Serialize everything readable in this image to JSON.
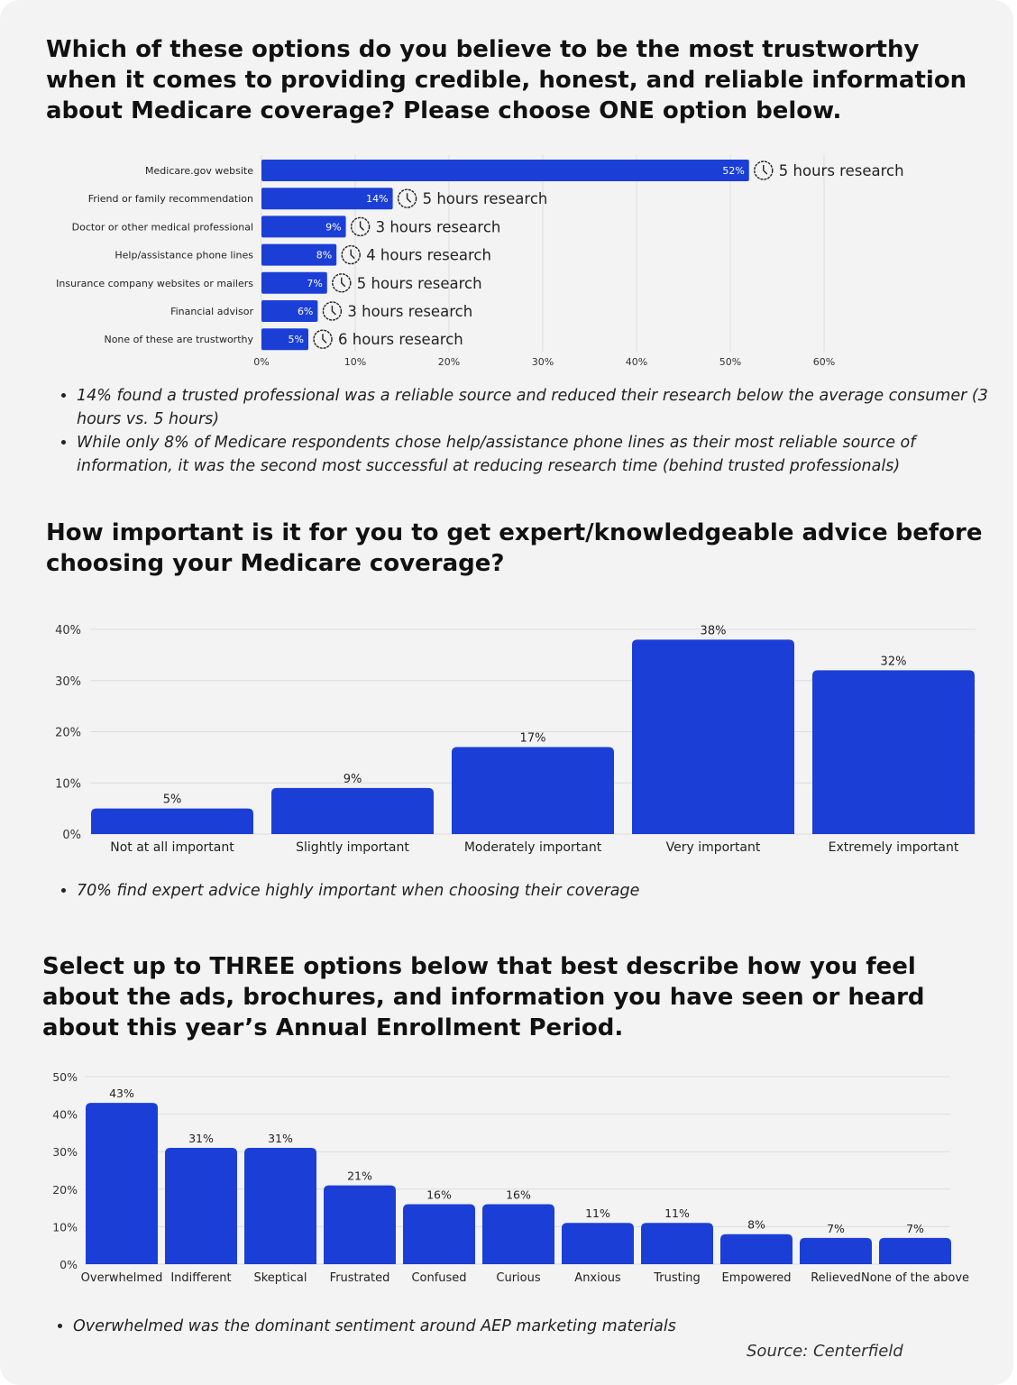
{
  "colors": {
    "bar": "#1b3fd6",
    "grid": "#dcdcdc",
    "background": "#f3f3f3"
  },
  "sections": [
    {
      "title": "Which of these options do you believe to be the most trustworthy when it comes to providing credible, honest, and reliable information about Medicare coverage? Please choose ONE option below.",
      "notes": [
        "14% found a trusted professional was a reliable source and reduced their research below the average consumer (3 hours vs. 5 hours)",
        "While only 8% of Medicare respondents chose help/assistance phone lines as their most reliable source of information, it was the second most successful at reducing research time (behind trusted professionals)"
      ]
    },
    {
      "title": "How important is it for you to get expert/knowledgeable advice before choosing your Medicare coverage?",
      "notes": [
        "70% find expert advice highly important when choosing their coverage"
      ]
    },
    {
      "title": "Select up to THREE options below that best describe how you feel about the ads, brochures, and information you have seen or heard about this year’s Annual Enrollment Period.",
      "notes": [
        "Overwhelmed was the dominant sentiment around AEP marketing materials"
      ]
    }
  ],
  "source": "Source: Centerfield",
  "chart_data": [
    {
      "type": "bar",
      "orientation": "horizontal",
      "categories": [
        "Medicare.gov website",
        "Friend or family recommendation",
        "Doctor or other medical professional",
        "Help/assistance phone lines",
        "Insurance company websites or mailers",
        "Financial advisor",
        "None of these are trustworthy"
      ],
      "values": [
        52,
        14,
        9,
        8,
        7,
        6,
        5
      ],
      "data_labels": [
        "52%",
        "14%",
        "9%",
        "8%",
        "7%",
        "6%",
        "5%"
      ],
      "annotations": [
        "5 hours research",
        "5 hours research",
        "3 hours research",
        "4 hours research",
        "5 hours research",
        "3 hours research",
        "6 hours research"
      ],
      "annotation_icon": "clock-icon",
      "xlim": [
        0,
        60
      ],
      "xticks": [
        "0%",
        "10%",
        "20%",
        "30%",
        "40%",
        "50%",
        "60%"
      ],
      "grid": true
    },
    {
      "type": "bar",
      "categories": [
        "Not at all important",
        "Slightly important",
        "Moderately important",
        "Very important",
        "Extremely important"
      ],
      "values": [
        5,
        9,
        17,
        38,
        32
      ],
      "data_labels": [
        "5%",
        "9%",
        "17%",
        "38%",
        "32%"
      ],
      "ylim": [
        0,
        40
      ],
      "yticks": [
        "0%",
        "10%",
        "20%",
        "30%",
        "40%"
      ],
      "grid": true
    },
    {
      "type": "bar",
      "categories": [
        "Overwhelmed",
        "Indifferent",
        "Skeptical",
        "Frustrated",
        "Confused",
        "Curious",
        "Anxious",
        "Trusting",
        "Empowered",
        "Relieved",
        "None of the above"
      ],
      "values": [
        43,
        31,
        31,
        21,
        16,
        16,
        11,
        11,
        8,
        7,
        7
      ],
      "data_labels": [
        "43%",
        "31%",
        "31%",
        "21%",
        "16%",
        "16%",
        "11%",
        "11%",
        "8%",
        "7%",
        "7%"
      ],
      "ylim": [
        0,
        50
      ],
      "yticks": [
        "0%",
        "10%",
        "20%",
        "30%",
        "40%",
        "50%"
      ],
      "grid": true
    }
  ]
}
